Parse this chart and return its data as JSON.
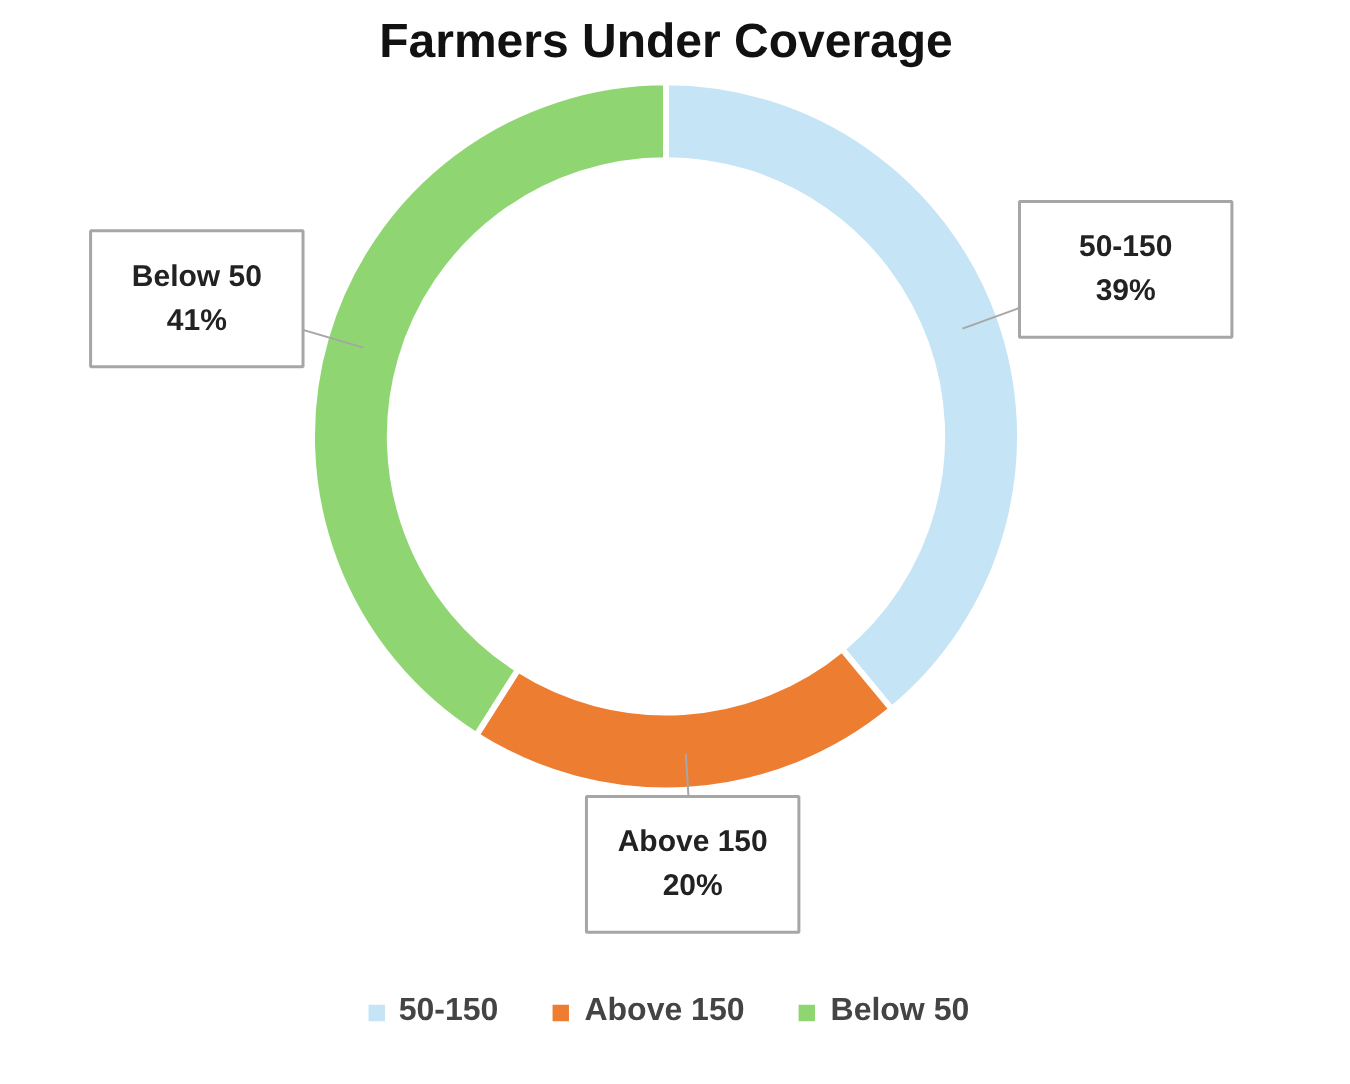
{
  "chart_data": {
    "type": "donut",
    "title": "Farmers Under Coverage",
    "categories": [
      "50-150",
      "Above 150",
      "Below 50"
    ],
    "values": [
      39,
      20,
      41
    ],
    "value_labels": [
      "39%",
      "20%",
      "41%"
    ],
    "colors": [
      "#c5e4f5",
      "#ed7d31",
      "#8fd672"
    ],
    "legend": "bottom"
  }
}
